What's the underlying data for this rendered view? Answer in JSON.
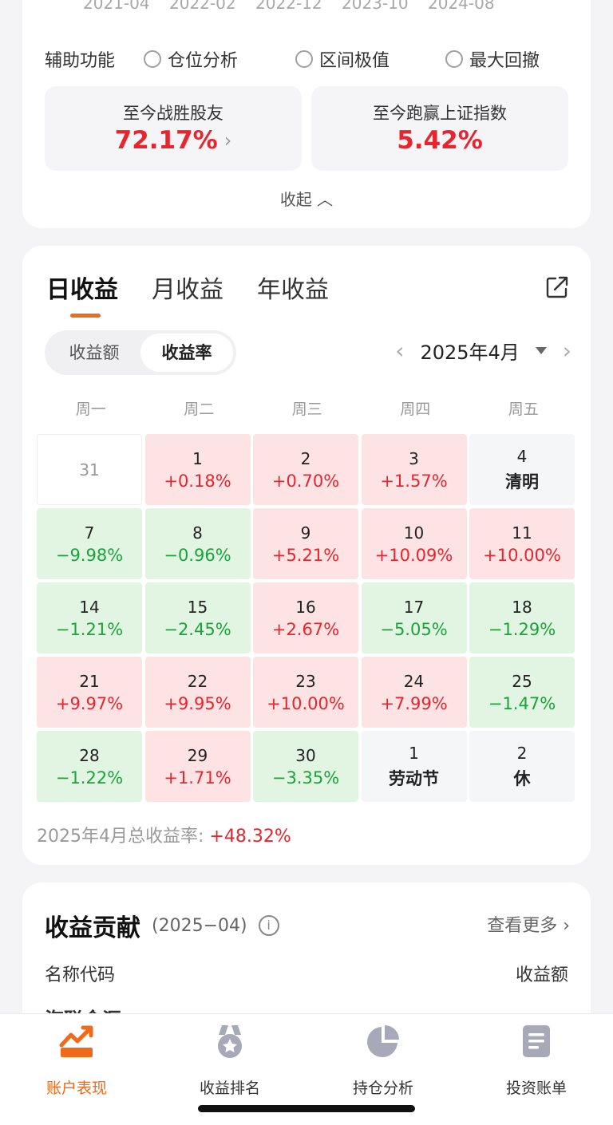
{
  "axis_labels": [
    "2021-04",
    "2022-02",
    "2022-12",
    "2023-10",
    "2024-08"
  ],
  "aux": {
    "label": "辅助功能",
    "options": [
      "仓位分析",
      "区间极值",
      "最大回撤"
    ]
  },
  "stats": [
    {
      "label": "至今战胜股友",
      "value": "72.17%",
      "chevron": "›"
    },
    {
      "label": "至今跑赢上证指数",
      "value": "5.42%"
    }
  ],
  "collapse_label": "收起 ︿",
  "calendar": {
    "tabs": [
      "日收益",
      "月收益",
      "年收益"
    ],
    "segment": [
      "收益额",
      "收益率"
    ],
    "month": "2025年4月",
    "prev": "‹",
    "next": "›",
    "weekdays": [
      "周一",
      "周二",
      "周三",
      "周四",
      "周五"
    ],
    "cells": [
      {
        "d": "31",
        "v": "",
        "t": "blank"
      },
      {
        "d": "1",
        "v": "+0.18%",
        "t": "pos"
      },
      {
        "d": "2",
        "v": "+0.70%",
        "t": "pos"
      },
      {
        "d": "3",
        "v": "+1.57%",
        "t": "pos"
      },
      {
        "d": "4",
        "v": "清明",
        "t": "hol"
      },
      {
        "d": "7",
        "v": "−9.98%",
        "t": "neg"
      },
      {
        "d": "8",
        "v": "−0.96%",
        "t": "neg"
      },
      {
        "d": "9",
        "v": "+5.21%",
        "t": "pos"
      },
      {
        "d": "10",
        "v": "+10.09%",
        "t": "pos"
      },
      {
        "d": "11",
        "v": "+10.00%",
        "t": "pos"
      },
      {
        "d": "14",
        "v": "−1.21%",
        "t": "neg"
      },
      {
        "d": "15",
        "v": "−2.45%",
        "t": "neg"
      },
      {
        "d": "16",
        "v": "+2.67%",
        "t": "pos"
      },
      {
        "d": "17",
        "v": "−5.05%",
        "t": "neg"
      },
      {
        "d": "18",
        "v": "−1.29%",
        "t": "neg"
      },
      {
        "d": "21",
        "v": "+9.97%",
        "t": "pos"
      },
      {
        "d": "22",
        "v": "+9.95%",
        "t": "pos"
      },
      {
        "d": "23",
        "v": "+10.00%",
        "t": "pos"
      },
      {
        "d": "24",
        "v": "+7.99%",
        "t": "pos"
      },
      {
        "d": "25",
        "v": "−1.47%",
        "t": "neg"
      },
      {
        "d": "28",
        "v": "−1.22%",
        "t": "neg"
      },
      {
        "d": "29",
        "v": "+1.71%",
        "t": "pos"
      },
      {
        "d": "30",
        "v": "−3.35%",
        "t": "neg"
      },
      {
        "d": "1",
        "v": "劳动节",
        "t": "hol"
      },
      {
        "d": "2",
        "v": "休",
        "t": "hol"
      }
    ],
    "total_label": "2025年4月总收益率: ",
    "total_value": "+48.32%"
  },
  "contribution": {
    "title": "收益贡献",
    "period": "(2025−04)",
    "info": "i",
    "more": "查看更多 ›",
    "col_name": "名称代码",
    "col_amount": "收益额",
    "partial_row": "海联金汇"
  },
  "tabbar": [
    {
      "label": "账户表现",
      "icon": "chart-trend-icon",
      "active": true
    },
    {
      "label": "收益排名",
      "icon": "medal-icon",
      "active": false
    },
    {
      "label": "持仓分析",
      "icon": "pie-icon",
      "active": false
    },
    {
      "label": "投资账单",
      "icon": "bill-icon",
      "active": false
    }
  ],
  "colors": {
    "accent": "#f06a1a",
    "up": "#e8252e",
    "down": "#1ba33b"
  }
}
